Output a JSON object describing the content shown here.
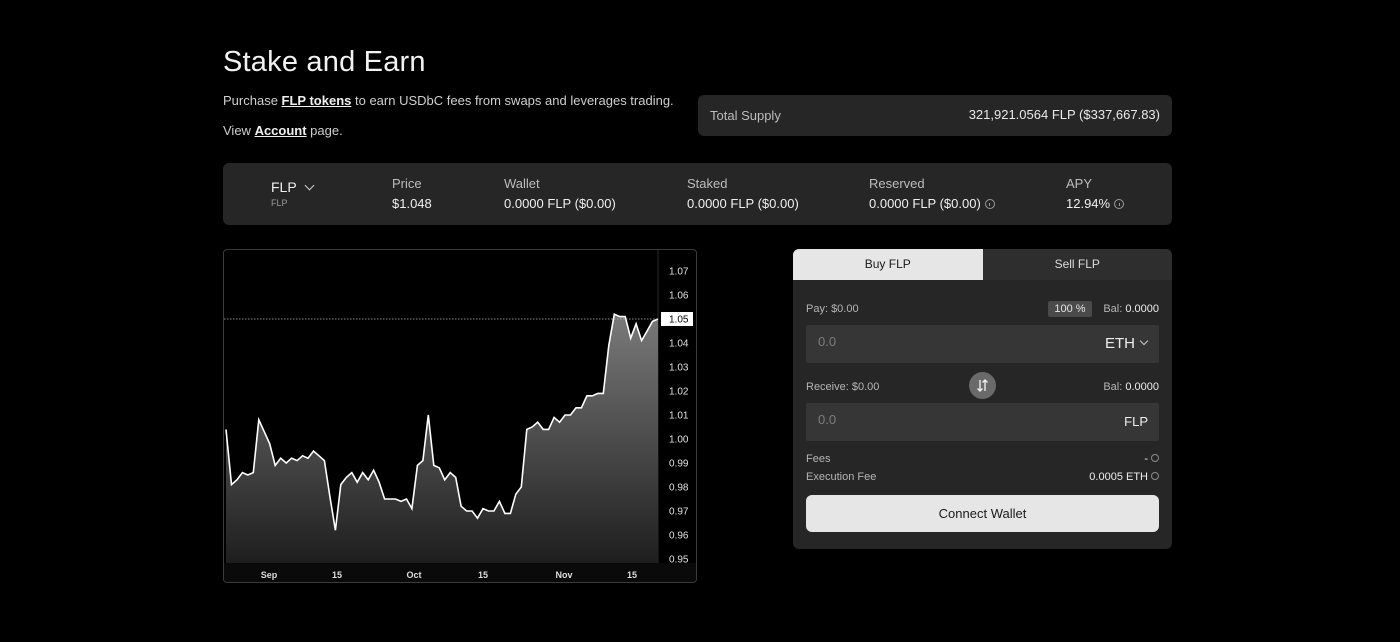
{
  "header": {
    "title": "Stake and Earn",
    "desc_prefix": "Purchase ",
    "desc_link": "FLP tokens",
    "desc_suffix": " to earn USDbC fees from swaps and leverages trading.",
    "view_prefix": "View ",
    "view_link": "Account",
    "view_suffix": " page."
  },
  "supply": {
    "label": "Total Supply",
    "value": "321,921.0564 FLP ($337,667.83)"
  },
  "stats": {
    "token_name": "FLP",
    "token_sub": "FLP",
    "price_label": "Price",
    "price_value": "$1.048",
    "wallet_label": "Wallet",
    "wallet_value": "0.0000 FLP ($0.00)",
    "staked_label": "Staked",
    "staked_value": "0.0000 FLP ($0.00)",
    "reserved_label": "Reserved",
    "reserved_value": "0.0000 FLP ($0.00)",
    "apy_label": "APY",
    "apy_value": "12.94%"
  },
  "chart_data": {
    "type": "area",
    "x_ticks": [
      "Sep",
      "15",
      "Oct",
      "15",
      "Nov",
      "15"
    ],
    "y_ticks": [
      "1.07",
      "1.06",
      "1.05",
      "1.04",
      "1.03",
      "1.02",
      "1.01",
      "1.00",
      "0.99",
      "0.98",
      "0.97",
      "0.96",
      "0.95"
    ],
    "ylim": [
      0.95,
      1.07
    ],
    "current_value": "1.05",
    "values": [
      1.004,
      0.981,
      0.983,
      0.986,
      0.985,
      0.986,
      1.008,
      1.003,
      0.998,
      0.989,
      0.992,
      0.99,
      0.992,
      0.991,
      0.993,
      0.992,
      0.995,
      0.993,
      0.991,
      0.976,
      0.962,
      0.981,
      0.984,
      0.986,
      0.982,
      0.986,
      0.983,
      0.987,
      0.982,
      0.975,
      0.975,
      0.975,
      0.974,
      0.975,
      0.971,
      0.989,
      0.991,
      1.01,
      0.989,
      0.988,
      0.983,
      0.986,
      0.984,
      0.972,
      0.97,
      0.97,
      0.967,
      0.971,
      0.97,
      0.97,
      0.974,
      0.969,
      0.969,
      0.977,
      0.98,
      1.004,
      1.005,
      1.007,
      1.004,
      1.004,
      1.009,
      1.007,
      1.01,
      1.01,
      1.013,
      1.013,
      1.018,
      1.018,
      1.019,
      1.019,
      1.039,
      1.052,
      1.051,
      1.051,
      1.042,
      1.048,
      1.041,
      1.045,
      1.049,
      1.05
    ]
  },
  "panel": {
    "tab_buy": "Buy FLP",
    "tab_sell": "Sell FLP",
    "pay_label": "Pay: $0.00",
    "pct_label": "100 %",
    "bal_label": "Bal:",
    "pay_bal": "0.0000",
    "pay_placeholder": "0.0",
    "pay_token": "ETH",
    "receive_label": "Receive: $0.00",
    "receive_bal": "0.0000",
    "receive_placeholder": "0.0",
    "receive_token": "FLP",
    "fees_label": "Fees",
    "fees_value": "-",
    "exec_label": "Execution Fee",
    "exec_value": "0.0005 ETH",
    "connect_label": "Connect Wallet"
  }
}
